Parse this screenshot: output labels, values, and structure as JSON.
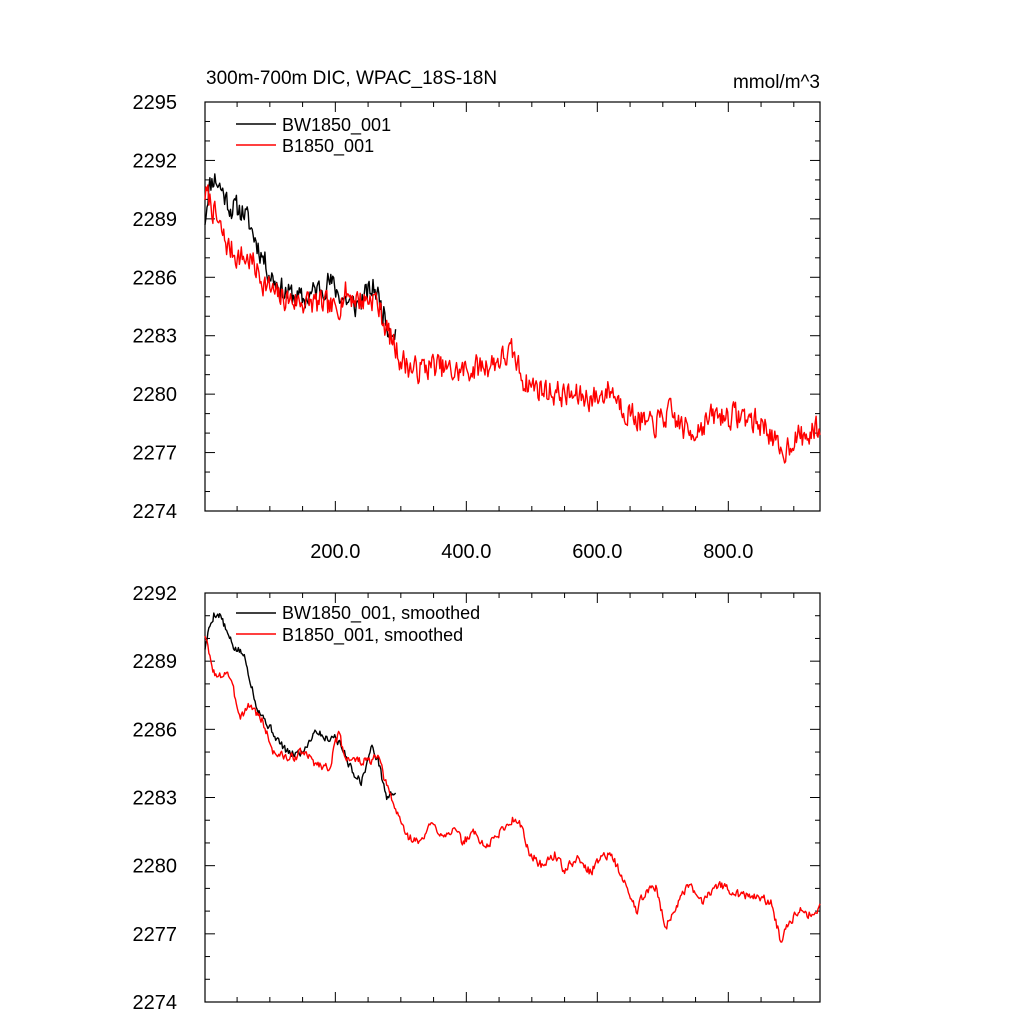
{
  "figure": {
    "title_left": "300m-700m DIC, WPAC_18S-18N",
    "title_right": "mmol/m^3"
  },
  "chart_data": [
    {
      "type": "line",
      "title": "300m-700m DIC, WPAC_18S-18N",
      "units": "mmol/m^3",
      "xlim": [
        1,
        940
      ],
      "ylim": [
        2274,
        2295
      ],
      "xticks": [
        200,
        400,
        600,
        800
      ],
      "xtick_labels": [
        "200.0",
        "400.0",
        "600.0",
        "800.0"
      ],
      "yticks": [
        2274,
        2277,
        2280,
        2283,
        2286,
        2289,
        2292,
        2295
      ],
      "ytick_labels": [
        "2274",
        "2277",
        "2280",
        "2283",
        "2286",
        "2289",
        "2292",
        "2295"
      ],
      "legend_position": "top-left",
      "series": [
        {
          "name": "BW1850_001",
          "color": "#000000",
          "noise": 0.9,
          "seed": 11,
          "anchors": [
            [
              1,
              2289.0
            ],
            [
              6,
              2290.5
            ],
            [
              15,
              2291.2
            ],
            [
              25,
              2290.6
            ],
            [
              40,
              2289.6
            ],
            [
              60,
              2289.4
            ],
            [
              80,
              2287.8
            ],
            [
              100,
              2286.2
            ],
            [
              120,
              2285.3
            ],
            [
              150,
              2284.8
            ],
            [
              170,
              2285.3
            ],
            [
              190,
              2285.8
            ],
            [
              210,
              2285.0
            ],
            [
              230,
              2284.5
            ],
            [
              260,
              2285.5
            ],
            [
              280,
              2283.6
            ],
            [
              293,
              2283.3
            ]
          ]
        },
        {
          "name": "B1850_001",
          "color": "#ff0000",
          "noise": 0.95,
          "seed": 7,
          "anchors": [
            [
              1,
              2290.3
            ],
            [
              8,
              2290.0
            ],
            [
              20,
              2288.8
            ],
            [
              35,
              2287.6
            ],
            [
              50,
              2287.1
            ],
            [
              70,
              2286.9
            ],
            [
              90,
              2285.8
            ],
            [
              110,
              2285.0
            ],
            [
              140,
              2284.8
            ],
            [
              180,
              2284.6
            ],
            [
              200,
              2284.3
            ],
            [
              215,
              2285.2
            ],
            [
              240,
              2284.8
            ],
            [
              260,
              2285.0
            ],
            [
              280,
              2283.2
            ],
            [
              300,
              2281.8
            ],
            [
              320,
              2281.2
            ],
            [
              350,
              2281.5
            ],
            [
              380,
              2281.1
            ],
            [
              410,
              2281.3
            ],
            [
              440,
              2281.6
            ],
            [
              470,
              2282.1
            ],
            [
              490,
              2280.6
            ],
            [
              520,
              2280.2
            ],
            [
              560,
              2279.9
            ],
            [
              600,
              2279.8
            ],
            [
              620,
              2280.3
            ],
            [
              640,
              2279.3
            ],
            [
              680,
              2278.3
            ],
            [
              710,
              2279.0
            ],
            [
              740,
              2278.0
            ],
            [
              780,
              2278.9
            ],
            [
              820,
              2278.9
            ],
            [
              860,
              2278.3
            ],
            [
              880,
              2276.8
            ],
            [
              900,
              2277.8
            ],
            [
              920,
              2277.8
            ],
            [
              940,
              2278.3
            ]
          ]
        }
      ]
    },
    {
      "type": "line",
      "title": "",
      "xlim": [
        1,
        940
      ],
      "ylim": [
        2274,
        2292
      ],
      "xticks": [
        200,
        400,
        600,
        800
      ],
      "xtick_labels": [],
      "yticks": [
        2274,
        2277,
        2280,
        2283,
        2286,
        2289,
        2292
      ],
      "ytick_labels": [
        "2274",
        "2277",
        "2280",
        "2283",
        "2286",
        "2289",
        "2292"
      ],
      "legend_position": "top-left",
      "series": [
        {
          "name": "BW1850_001, smoothed",
          "color": "#000000",
          "noise": 0.25,
          "seed": 5,
          "anchors": [
            [
              1,
              2289.6
            ],
            [
              8,
              2290.5
            ],
            [
              15,
              2291.1
            ],
            [
              25,
              2291.0
            ],
            [
              35,
              2290.2
            ],
            [
              45,
              2289.6
            ],
            [
              60,
              2289.3
            ],
            [
              70,
              2288.2
            ],
            [
              80,
              2287.0
            ],
            [
              95,
              2286.3
            ],
            [
              115,
              2285.4
            ],
            [
              130,
              2284.9
            ],
            [
              150,
              2285.0
            ],
            [
              170,
              2286.0
            ],
            [
              185,
              2285.6
            ],
            [
              200,
              2285.7
            ],
            [
              215,
              2284.9
            ],
            [
              225,
              2284.2
            ],
            [
              240,
              2283.7
            ],
            [
              255,
              2285.2
            ],
            [
              265,
              2284.7
            ],
            [
              278,
              2283.0
            ],
            [
              285,
              2283.1
            ],
            [
              293,
              2283.3
            ]
          ]
        },
        {
          "name": "B1850_001, smoothed",
          "color": "#ff0000",
          "noise": 0.28,
          "seed": 3,
          "anchors": [
            [
              1,
              2290.2
            ],
            [
              10,
              2288.9
            ],
            [
              20,
              2288.2
            ],
            [
              35,
              2288.6
            ],
            [
              45,
              2287.6
            ],
            [
              55,
              2286.6
            ],
            [
              70,
              2287.1
            ],
            [
              90,
              2286.3
            ],
            [
              105,
              2285.0
            ],
            [
              130,
              2284.7
            ],
            [
              150,
              2285.0
            ],
            [
              170,
              2284.5
            ],
            [
              190,
              2284.3
            ],
            [
              205,
              2285.8
            ],
            [
              215,
              2284.8
            ],
            [
              235,
              2284.6
            ],
            [
              255,
              2284.6
            ],
            [
              265,
              2284.8
            ],
            [
              275,
              2283.8
            ],
            [
              290,
              2282.6
            ],
            [
              310,
              2281.3
            ],
            [
              330,
              2281.0
            ],
            [
              345,
              2281.8
            ],
            [
              365,
              2281.4
            ],
            [
              380,
              2281.6
            ],
            [
              395,
              2281.0
            ],
            [
              410,
              2281.5
            ],
            [
              430,
              2280.8
            ],
            [
              455,
              2281.6
            ],
            [
              470,
              2282.0
            ],
            [
              480,
              2282.1
            ],
            [
              495,
              2280.6
            ],
            [
              515,
              2280.0
            ],
            [
              535,
              2280.5
            ],
            [
              550,
              2279.8
            ],
            [
              570,
              2280.3
            ],
            [
              590,
              2279.7
            ],
            [
              610,
              2280.6
            ],
            [
              625,
              2280.3
            ],
            [
              640,
              2279.3
            ],
            [
              660,
              2278.0
            ],
            [
              675,
              2279.0
            ],
            [
              690,
              2279.0
            ],
            [
              705,
              2277.3
            ],
            [
              720,
              2278.2
            ],
            [
              740,
              2279.1
            ],
            [
              760,
              2278.4
            ],
            [
              780,
              2279.2
            ],
            [
              800,
              2279.0
            ],
            [
              820,
              2278.7
            ],
            [
              845,
              2278.6
            ],
            [
              865,
              2278.4
            ],
            [
              880,
              2276.7
            ],
            [
              895,
              2277.6
            ],
            [
              910,
              2278.2
            ],
            [
              925,
              2277.8
            ],
            [
              940,
              2278.3
            ]
          ]
        }
      ]
    }
  ]
}
